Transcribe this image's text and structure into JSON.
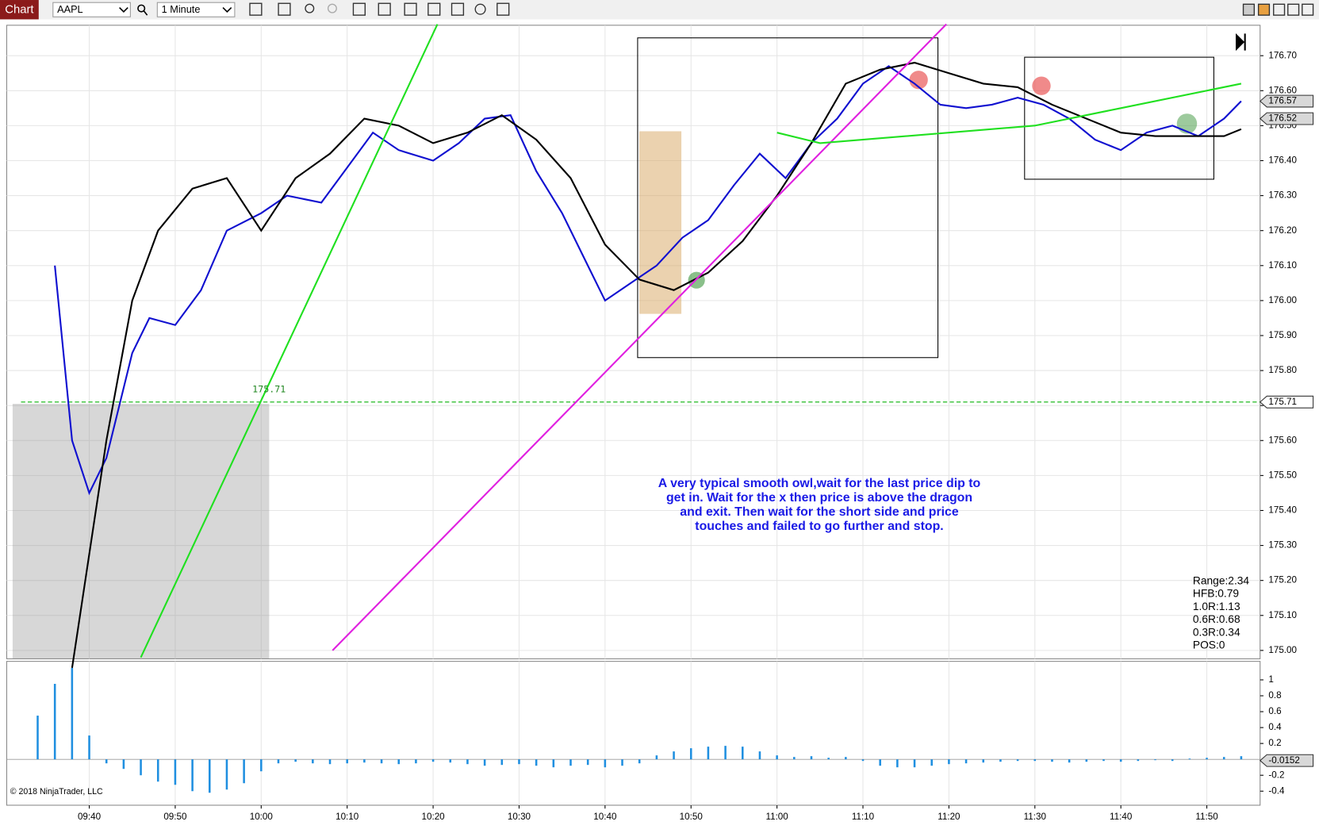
{
  "toolbar": {
    "label": "Chart",
    "instrument": "AAPL",
    "interval": "1 Minute"
  },
  "copyright": "© 2018 NinjaTrader, LLC",
  "chart_data": [
    {
      "type": "line",
      "xlim": [
        570.4,
        716.2
      ],
      "xticks": [
        {
          "value": 580,
          "label": "09:40"
        },
        {
          "value": 590,
          "label": "09:50"
        },
        {
          "value": 600,
          "label": "10:00"
        },
        {
          "value": 610,
          "label": "10:10"
        },
        {
          "value": 620,
          "label": "10:20"
        },
        {
          "value": 630,
          "label": "10:30"
        },
        {
          "value": 640,
          "label": "10:40"
        },
        {
          "value": 650,
          "label": "10:50"
        },
        {
          "value": 660,
          "label": "11:00"
        },
        {
          "value": 670,
          "label": "11:10"
        },
        {
          "value": 680,
          "label": "11:20"
        },
        {
          "value": 690,
          "label": "11:30"
        },
        {
          "value": 700,
          "label": "11:40"
        },
        {
          "value": 710,
          "label": "11:50"
        }
      ],
      "ylim": [
        174.976,
        176.787
      ],
      "yticks": [
        {
          "value": 176.7,
          "label": "176.70"
        },
        {
          "value": 176.6,
          "label": "176.60"
        },
        {
          "value": 176.5,
          "label": "176.50"
        },
        {
          "value": 176.4,
          "label": "176.40"
        },
        {
          "value": 176.3,
          "label": "176.30"
        },
        {
          "value": 176.2,
          "label": "176.20"
        },
        {
          "value": 176.1,
          "label": "176.10"
        },
        {
          "value": 176.0,
          "label": "176.00"
        },
        {
          "value": 175.9,
          "label": "175.90"
        },
        {
          "value": 175.8,
          "label": "175.80"
        },
        {
          "value": 175.7,
          "label": "175.70"
        },
        {
          "value": 175.6,
          "label": "175.60"
        },
        {
          "value": 175.5,
          "label": "175.50"
        },
        {
          "value": 175.4,
          "label": "175.40"
        },
        {
          "value": 175.3,
          "label": "175.30"
        },
        {
          "value": 175.2,
          "label": "175.20"
        },
        {
          "value": 175.1,
          "label": "175.10"
        },
        {
          "value": 175.0,
          "label": "175.00"
        }
      ],
      "grid": true,
      "series": [
        {
          "color": "#1010d0",
          "x": [
            576,
            578,
            580,
            582,
            585,
            587,
            590,
            593,
            596,
            600,
            603,
            607,
            610,
            613,
            616,
            620,
            623,
            626,
            629,
            632,
            635,
            638,
            640,
            643,
            646,
            649,
            652,
            655,
            658,
            661,
            664,
            667,
            670,
            673,
            676,
            679,
            682,
            685,
            688,
            691,
            694,
            697,
            700,
            703,
            706,
            709,
            712,
            714
          ],
          "values": [
            176.1,
            175.6,
            175.45,
            175.55,
            175.85,
            175.95,
            175.93,
            176.03,
            176.2,
            176.25,
            176.3,
            176.28,
            176.38,
            176.48,
            176.43,
            176.4,
            176.45,
            176.52,
            176.53,
            176.37,
            176.25,
            176.1,
            176.0,
            176.05,
            176.1,
            176.18,
            176.23,
            176.33,
            176.42,
            176.35,
            176.45,
            176.52,
            176.62,
            176.67,
            176.62,
            176.56,
            176.55,
            176.56,
            176.58,
            176.56,
            176.52,
            176.46,
            176.43,
            176.48,
            176.5,
            176.47,
            176.52,
            176.57
          ]
        },
        {
          "color": "#000000",
          "x": [
            578,
            582,
            585,
            588,
            592,
            596,
            600,
            604,
            608,
            612,
            616,
            620,
            624,
            628,
            632,
            636,
            640,
            644,
            648,
            652,
            656,
            660,
            664,
            668,
            672,
            676,
            680,
            684,
            688,
            692,
            696,
            700,
            704,
            708,
            712,
            714
          ],
          "values": [
            174.95,
            175.6,
            176.0,
            176.2,
            176.32,
            176.35,
            176.2,
            176.35,
            176.42,
            176.52,
            176.5,
            176.45,
            176.48,
            176.53,
            176.46,
            176.35,
            176.16,
            176.06,
            176.03,
            176.08,
            176.17,
            176.3,
            176.45,
            176.62,
            176.66,
            176.68,
            176.65,
            176.62,
            176.61,
            176.56,
            176.52,
            176.48,
            176.47,
            176.47,
            176.47,
            176.49
          ]
        },
        {
          "color": "#e020e0",
          "x": [
            608.3,
            679.7
          ],
          "values": [
            175.0,
            176.79
          ]
        },
        {
          "color": "#20e020",
          "x": [
            586,
            620.5,
            640,
            660,
            665,
            690,
            700,
            714
          ],
          "values": [
            174.98,
            176.79,
            null,
            176.48,
            176.45,
            176.5,
            176.55,
            176.62
          ]
        }
      ],
      "reference_line": 175.71,
      "price_markers": [
        176.57,
        176.52
      ],
      "annotation": [
        "A very typical smooth owl,wait for the last price dip to",
        "get in. Wait for the x then price is above the dragon",
        "and  exit. Then wait for the short side and price",
        "touches and failed to go further and stop."
      ],
      "stats": [
        "Range:2.34",
        "HFB:0.79",
        "1.0R:1.13",
        "0.6R:0.68",
        "0.3R:0.34",
        "POS:0"
      ]
    },
    {
      "type": "bar",
      "color": "#1f8fe0",
      "x": [
        574,
        576,
        578,
        580,
        582,
        584,
        586,
        588,
        590,
        592,
        594,
        596,
        598,
        600,
        602,
        604,
        606,
        608,
        610,
        612,
        614,
        616,
        618,
        620,
        622,
        624,
        626,
        628,
        630,
        632,
        634,
        636,
        638,
        640,
        642,
        644,
        646,
        648,
        650,
        652,
        654,
        656,
        658,
        660,
        662,
        664,
        666,
        668,
        670,
        672,
        674,
        676,
        678,
        680,
        682,
        684,
        686,
        688,
        690,
        692,
        694,
        696,
        698,
        700,
        702,
        704,
        706,
        708,
        710,
        712,
        714
      ],
      "values": [
        0.55,
        0.95,
        1.15,
        0.3,
        -0.05,
        -0.12,
        -0.2,
        -0.28,
        -0.32,
        -0.4,
        -0.42,
        -0.38,
        -0.3,
        -0.15,
        -0.05,
        -0.03,
        -0.05,
        -0.06,
        -0.05,
        -0.04,
        -0.05,
        -0.06,
        -0.05,
        -0.03,
        -0.04,
        -0.06,
        -0.08,
        -0.07,
        -0.06,
        -0.08,
        -0.1,
        -0.08,
        -0.07,
        -0.1,
        -0.08,
        -0.05,
        0.05,
        0.1,
        0.14,
        0.16,
        0.17,
        0.16,
        0.1,
        0.05,
        0.03,
        0.04,
        0.02,
        0.03,
        -0.02,
        -0.08,
        -0.1,
        -0.1,
        -0.08,
        -0.06,
        -0.05,
        -0.04,
        -0.03,
        -0.02,
        -0.02,
        -0.03,
        -0.04,
        -0.03,
        -0.02,
        -0.03,
        -0.02,
        -0.01,
        -0.02,
        0.01,
        0.02,
        0.03,
        0.04
      ],
      "ylim": [
        -0.577,
        1.233
      ],
      "yticks": [
        1,
        0.8,
        0.6,
        0.4,
        0.2,
        -0.2,
        -0.4
      ],
      "current_value": -0.0152
    }
  ]
}
